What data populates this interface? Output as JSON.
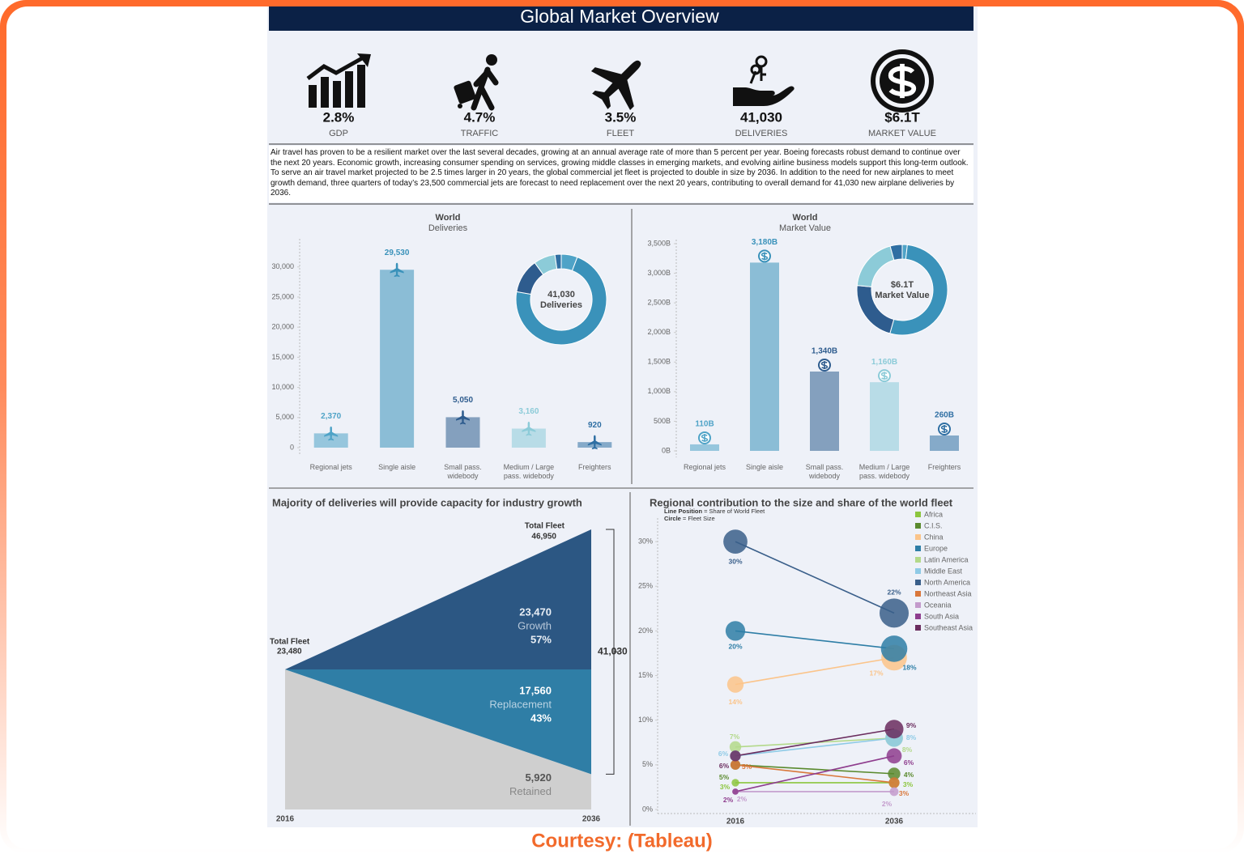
{
  "title": "Global Market Overview",
  "kpis": [
    {
      "value": "2.8%",
      "label": "GDP"
    },
    {
      "value": "4.7%",
      "label": "TRAFFIC"
    },
    {
      "value": "3.5%",
      "label": "FLEET"
    },
    {
      "value": "41,030",
      "label": "DELIVERIES"
    },
    {
      "value": "$6.1T",
      "label": "MARKET VALUE"
    }
  ],
  "description": "Air travel has proven to be a resilient market over the last several decades, growing at an annual average rate of more than 5 percent per year. Boeing forecasts robust demand to continue over the next 20 years. Economic growth, increasing consumer spending on services, growing middle classes in emerging markets, and evolving airline business models support this long-term outlook. To serve an air travel market projected to be 2.5 times larger in 20 years, the global commercial jet fleet is projected to double in size by 2036. In addition to the need for new airplanes to meet growth demand, three quarters of today’s 23,500 commercial jets are forecast to need replacement over the next 20 years, contributing to overall demand for 41,030 new airplane deliveries by 2036.",
  "credit": "Courtesy: (Tableau)",
  "chart_data": [
    {
      "type": "bar",
      "title": "World",
      "subtitle": "Deliveries",
      "categories": [
        "Regional jets",
        "Single aisle",
        "Small pass. widebody",
        "Medium / Large pass. widebody",
        "Freighters"
      ],
      "values": [
        2370,
        29530,
        5050,
        3160,
        920
      ],
      "value_labels": [
        "2,370",
        "29,530",
        "5,050",
        "3,160",
        "920"
      ],
      "colors": [
        "#4fa3c7",
        "#3a92ba",
        "#2e5c8e",
        "#8ccbd8",
        "#2f6fa3"
      ],
      "icon": "plane",
      "ylim": [
        0,
        34000
      ],
      "yticks": [
        0,
        {
          "value": 5000,
          "label": "5,000"
        },
        {
          "value": 10000,
          "label": "10,000"
        },
        {
          "value": 15000,
          "label": "15,000"
        },
        {
          "value": 20000,
          "label": "20,000"
        },
        {
          "value": 25000,
          "label": "25,000"
        },
        {
          "value": 30000,
          "label": "30,000"
        }
      ],
      "donut": {
        "center_label": "41,030",
        "center_sublabel": "Deliveries"
      }
    },
    {
      "type": "bar",
      "title": "World",
      "subtitle": "Market Value",
      "categories": [
        "Regional jets",
        "Single aisle",
        "Small pass. widebody",
        "Medium / Large pass. widebody",
        "Freighters"
      ],
      "values": [
        110,
        3180,
        1340,
        1160,
        260
      ],
      "value_labels": [
        "110B",
        "3,180B",
        "1,340B",
        "1,160B",
        "260B"
      ],
      "colors": [
        "#4fa3c7",
        "#3a92ba",
        "#2e5c8e",
        "#8ccbd8",
        "#2f6fa3"
      ],
      "icon": "dollar",
      "ylim": [
        0,
        3500
      ],
      "yticks": [
        {
          "value": 0,
          "label": "0B"
        },
        {
          "value": 500,
          "label": "500B"
        },
        {
          "value": 1000,
          "label": "1,000B"
        },
        {
          "value": 1500,
          "label": "1,500B"
        },
        {
          "value": 2000,
          "label": "2,000B"
        },
        {
          "value": 2500,
          "label": "2,500B"
        },
        {
          "value": 3000,
          "label": "3,000B"
        },
        {
          "value": 3500,
          "label": "3,500B"
        }
      ],
      "donut": {
        "center_label": "$6.1T",
        "center_sublabel": "Market Value"
      }
    },
    {
      "type": "area",
      "title": "Majority of deliveries will provide capacity for industry growth",
      "categories": [
        "2016",
        "2036"
      ],
      "ylim": [
        0,
        46950
      ],
      "series": [
        {
          "name": "Retained",
          "color": "#cfcfcf",
          "values": [
            23480,
            5920
          ],
          "value_labels": [
            null,
            "5,920"
          ]
        },
        {
          "name": "Replacement",
          "color": "#2f7ea6",
          "values": [
            0,
            17560
          ],
          "value_labels": [
            null,
            "17,560"
          ],
          "share_label": "43%"
        },
        {
          "name": "Growth",
          "color": "#2c5783",
          "values": [
            0,
            23470
          ],
          "value_labels": [
            null,
            "23,470"
          ],
          "share_label": "57%"
        }
      ],
      "totals": [
        {
          "label": "Total Fleet",
          "value": 23480,
          "value_label": "23,480"
        },
        {
          "label": "Total Fleet",
          "value": 46950,
          "value_label": "46,950"
        }
      ],
      "bracket": {
        "value": 41030,
        "label": "41,030"
      }
    },
    {
      "type": "slope",
      "title": "Regional contribution to the size and share of the world fleet",
      "notes": [
        {
          "key": "Line Position",
          "text": "= Share of World Fleet"
        },
        {
          "key": "Circle",
          "text": "= Fleet Size"
        }
      ],
      "categories": [
        "2016",
        "2036"
      ],
      "ylim": [
        0,
        33
      ],
      "yticks": [
        {
          "value": 0,
          "label": "0%"
        },
        {
          "value": 5,
          "label": "5%"
        },
        {
          "value": 10,
          "label": "10%"
        },
        {
          "value": 15,
          "label": "15%"
        },
        {
          "value": 20,
          "label": "20%"
        },
        {
          "value": 25,
          "label": "25%"
        },
        {
          "value": 30,
          "label": "30%"
        }
      ],
      "legend": "top-right",
      "series": [
        {
          "name": "Africa",
          "color": "#8cc63e",
          "values": [
            3,
            3
          ],
          "sizes": [
            704,
            1409
          ],
          "value_labels": [
            "3%",
            "3%"
          ]
        },
        {
          "name": "C.I.S.",
          "color": "#5a8a2e",
          "values": [
            5,
            4
          ],
          "sizes": [
            1174,
            1878
          ],
          "value_labels": [
            "5%",
            "4%"
          ]
        },
        {
          "name": "China",
          "color": "#fbc48a",
          "values": [
            14,
            17
          ],
          "sizes": [
            3287,
            7982
          ],
          "value_labels": [
            "14%",
            "17%"
          ]
        },
        {
          "name": "Europe",
          "color": "#2e7ea6",
          "values": [
            20,
            18
          ],
          "sizes": [
            4696,
            8451
          ],
          "value_labels": [
            "20%",
            "18%"
          ]
        },
        {
          "name": "Latin America",
          "color": "#b3d98a",
          "values": [
            7,
            8
          ],
          "sizes": [
            1644,
            3756
          ],
          "value_labels": [
            "7%",
            "8%"
          ]
        },
        {
          "name": "Middle East",
          "color": "#8ecae6",
          "values": [
            6,
            8
          ],
          "sizes": [
            1409,
            3756
          ],
          "value_labels": [
            "6%",
            "8%"
          ]
        },
        {
          "name": "North America",
          "color": "#3a5f8a",
          "values": [
            30,
            22
          ],
          "sizes": [
            7044,
            10329
          ],
          "value_labels": [
            "30%",
            "22%"
          ]
        },
        {
          "name": "Northeast Asia",
          "color": "#d9773a",
          "values": [
            5,
            3
          ],
          "sizes": [
            1174,
            1409
          ],
          "value_labels": [
            "5%",
            "3%"
          ]
        },
        {
          "name": "Oceania",
          "color": "#c39bcc",
          "values": [
            2,
            2
          ],
          "sizes": [
            470,
            939
          ],
          "value_labels": [
            "2%",
            "2%"
          ]
        },
        {
          "name": "South Asia",
          "color": "#8e3d8e",
          "values": [
            2,
            6
          ],
          "sizes": [
            470,
            2817
          ],
          "value_labels": [
            "2%",
            "6%"
          ]
        },
        {
          "name": "Southeast Asia",
          "color": "#6a2c5e",
          "values": [
            6,
            9
          ],
          "sizes": [
            1409,
            4226
          ],
          "value_labels": [
            "6%",
            "9%"
          ]
        }
      ]
    }
  ]
}
